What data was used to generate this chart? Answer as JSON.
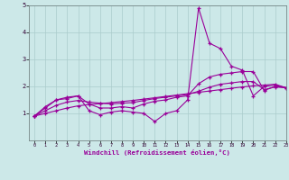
{
  "title": "",
  "xlabel": "Windchill (Refroidissement éolien,°C)",
  "bg_color": "#cce8e8",
  "line_color": "#990099",
  "grid_color": "#aacccc",
  "x_values": [
    0,
    1,
    2,
    3,
    4,
    5,
    6,
    7,
    8,
    9,
    10,
    11,
    12,
    13,
    14,
    15,
    16,
    17,
    18,
    19,
    20,
    21,
    22,
    23
  ],
  "series1": [
    0.9,
    1.25,
    1.5,
    1.55,
    1.65,
    1.1,
    0.95,
    1.05,
    1.1,
    1.05,
    1.0,
    0.7,
    1.0,
    1.1,
    1.5,
    4.9,
    3.6,
    3.4,
    2.75,
    2.6,
    1.65,
    2.0,
    2.05,
    1.95
  ],
  "series2": [
    0.9,
    1.2,
    1.5,
    1.6,
    1.65,
    1.35,
    1.2,
    1.2,
    1.25,
    1.2,
    1.35,
    1.45,
    1.5,
    1.6,
    1.65,
    2.1,
    2.35,
    2.45,
    2.5,
    2.55,
    2.55,
    1.85,
    2.0,
    1.95
  ],
  "series3": [
    0.9,
    1.1,
    1.3,
    1.42,
    1.48,
    1.42,
    1.38,
    1.35,
    1.38,
    1.4,
    1.48,
    1.55,
    1.6,
    1.65,
    1.7,
    1.82,
    1.97,
    2.08,
    2.13,
    2.18,
    2.18,
    1.88,
    1.98,
    1.95
  ],
  "series4": [
    0.9,
    1.0,
    1.1,
    1.2,
    1.28,
    1.33,
    1.36,
    1.4,
    1.44,
    1.48,
    1.53,
    1.58,
    1.63,
    1.68,
    1.73,
    1.78,
    1.83,
    1.88,
    1.93,
    1.98,
    2.02,
    2.05,
    2.08,
    1.95
  ],
  "ylim": [
    0,
    5
  ],
  "xlim": [
    -0.5,
    23
  ],
  "yticks": [
    1,
    2,
    3,
    4,
    5
  ],
  "xticks": [
    0,
    1,
    2,
    3,
    4,
    5,
    6,
    7,
    8,
    9,
    10,
    11,
    12,
    13,
    14,
    15,
    16,
    17,
    18,
    19,
    20,
    21,
    22,
    23
  ]
}
